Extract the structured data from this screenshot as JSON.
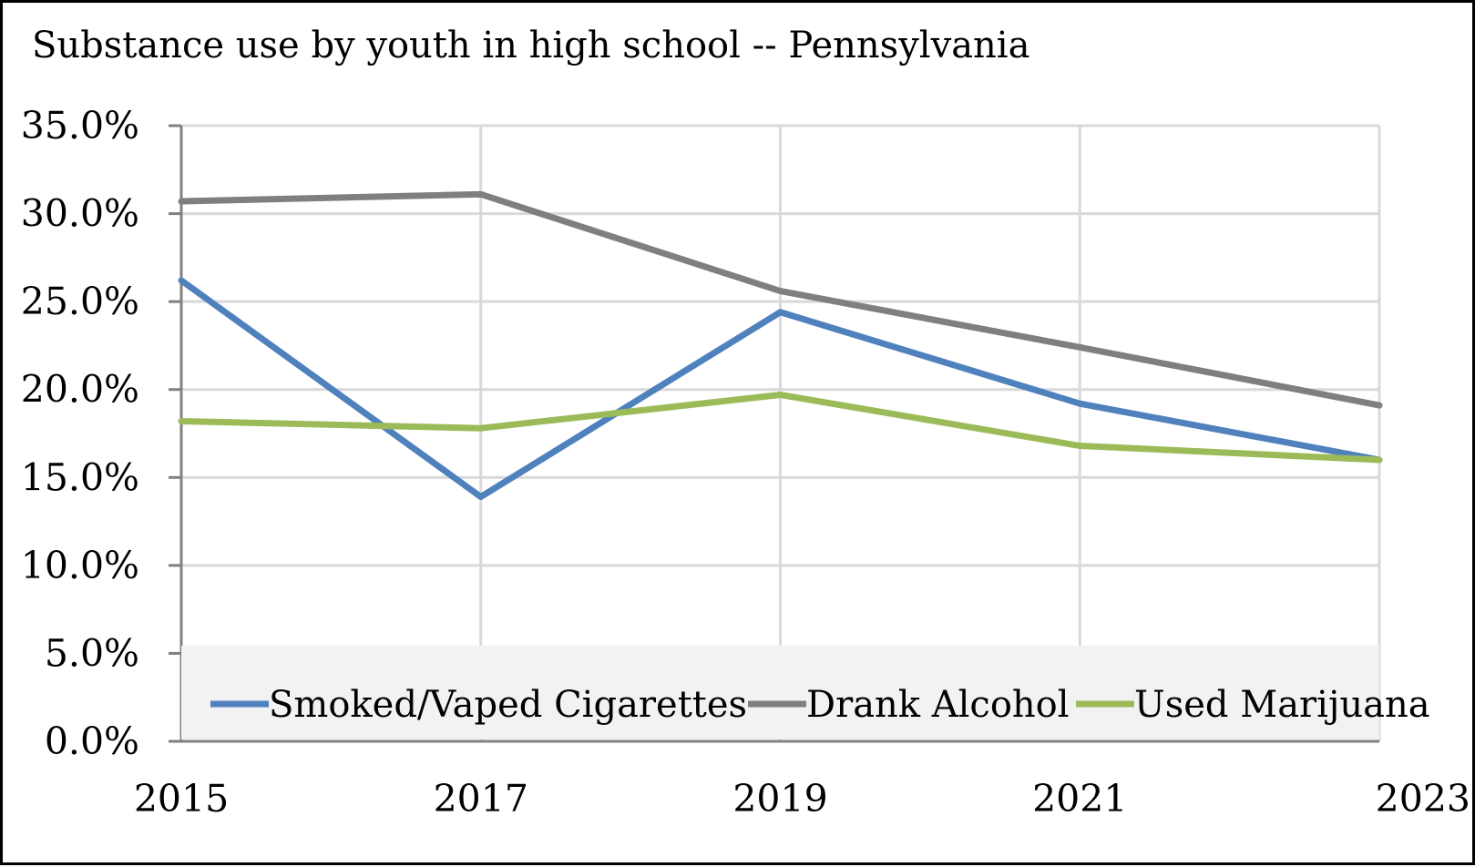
{
  "chart_data": {
    "type": "line",
    "title": "Substance use by youth in high school  -- Pennsylvania",
    "xlabel": "",
    "ylabel": "",
    "categories": [
      "2015",
      "2017",
      "2019",
      "2021",
      "2023"
    ],
    "y_ticks": [
      "0.0%",
      "5.0%",
      "10.0%",
      "15.0%",
      "20.0%",
      "25.0%",
      "30.0%",
      "35.0%"
    ],
    "ylim": [
      0,
      35
    ],
    "grid": true,
    "legend_position": "bottom-inside",
    "series": [
      {
        "name": "Smoked/Vaped Cigarettes",
        "color": "#4F81BD",
        "values": [
          26.2,
          13.9,
          24.4,
          19.2,
          16.0
        ]
      },
      {
        "name": "Drank Alcohol",
        "color": "#7F7F7F",
        "values": [
          30.7,
          31.1,
          25.6,
          22.4,
          19.1
        ]
      },
      {
        "name": "Used Marijuana",
        "color": "#9BBB59",
        "values": [
          18.2,
          17.8,
          19.7,
          16.8,
          16.0
        ]
      }
    ]
  }
}
